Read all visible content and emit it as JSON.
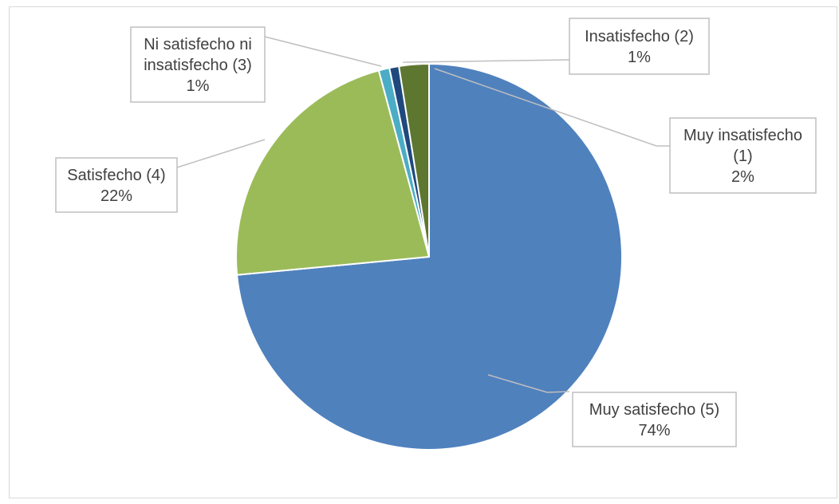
{
  "chart_data": {
    "type": "pie",
    "title": "",
    "slices": [
      {
        "label": "Muy satisfecho (5)",
        "pct_label": "74%",
        "value": 73.5,
        "color": "#4F81BD"
      },
      {
        "label": "Satisfecho (4)",
        "pct_label": "22%",
        "value": 22.3,
        "color": "#9BBB59"
      },
      {
        "label": "Ni satisfecho ni insatisfecho (3)",
        "pct_label": "1%",
        "value": 0.9,
        "color": "#4BACC6"
      },
      {
        "label": "Insatisfecho (2)",
        "pct_label": "1%",
        "value": 0.8,
        "color": "#1F497D"
      },
      {
        "label": "Muy insatisfecho (1)",
        "pct_label": "2%",
        "value": 2.5,
        "color": "#5E7730"
      }
    ],
    "legend": "none",
    "data_labels": "callouts"
  }
}
